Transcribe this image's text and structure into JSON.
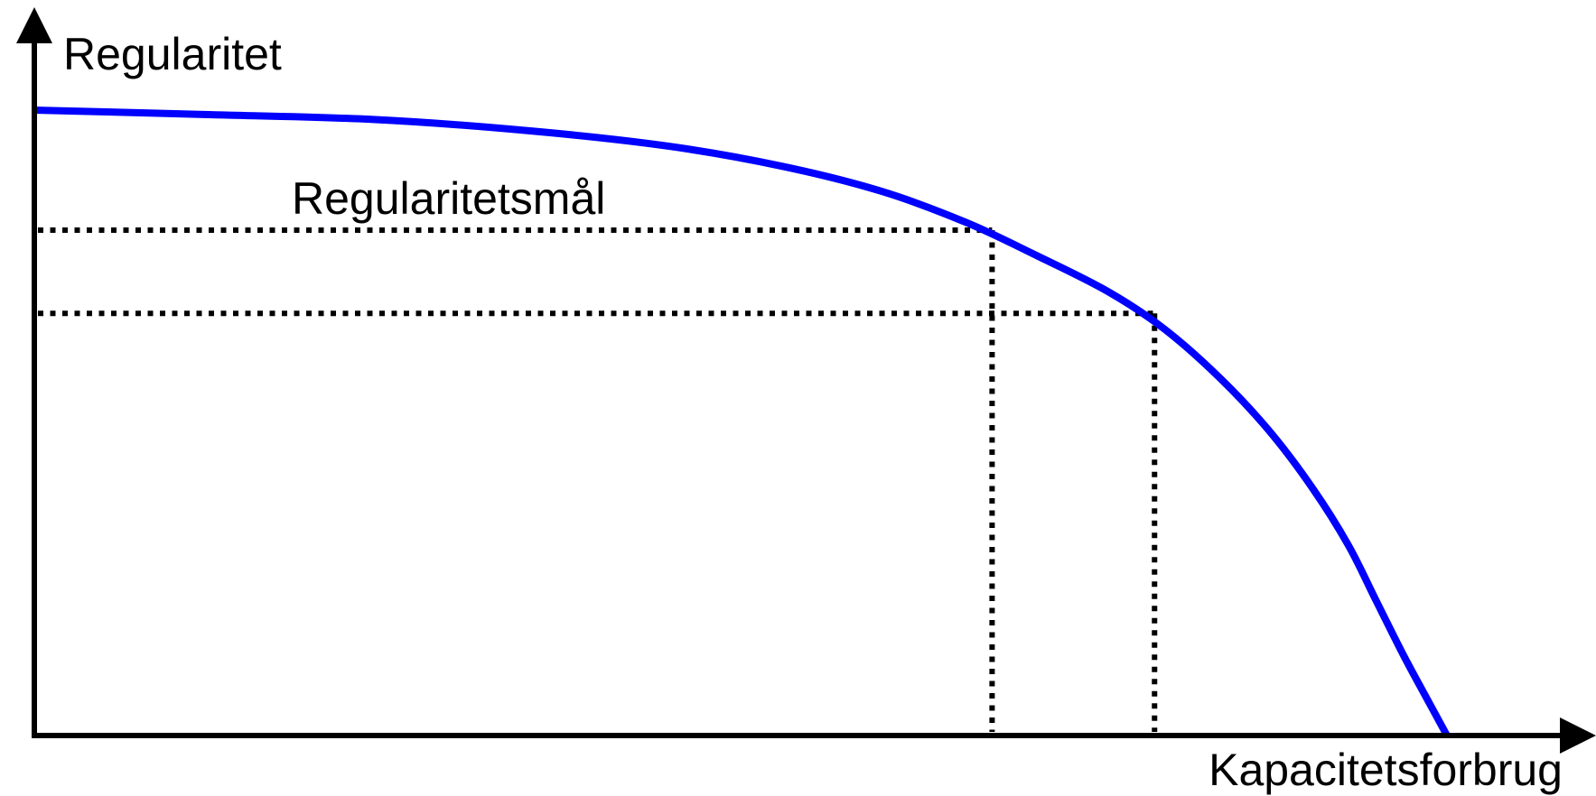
{
  "chart_data": {
    "type": "line",
    "ylabel": "Regularitet",
    "xlabel": "Kapacitetsforbrug",
    "grid": false,
    "legend": "none",
    "xlim": [
      0,
      100
    ],
    "ylim": [
      0,
      100
    ],
    "series": [
      {
        "color": "#0000ff",
        "x": [
          0,
          12,
          24,
          35,
          45,
          53,
          60,
          66,
          71,
          76,
          80,
          84,
          87.5,
          90.5,
          93,
          95,
          97,
          98.8,
          100
        ],
        "y": [
          100,
          99.3,
          98.5,
          96.7,
          94.2,
          91,
          87,
          82,
          76.7,
          71,
          65,
          57,
          48.5,
          39.5,
          30.5,
          21.5,
          12.5,
          5,
          0
        ]
      }
    ],
    "annotations": [
      {
        "text": "Regularitetsmål",
        "x": 18,
        "y": 85
      }
    ],
    "reference_lines": [
      {
        "x": 67.8,
        "y": 80.8
      },
      {
        "x": 79.3,
        "y": 67.5
      }
    ]
  }
}
